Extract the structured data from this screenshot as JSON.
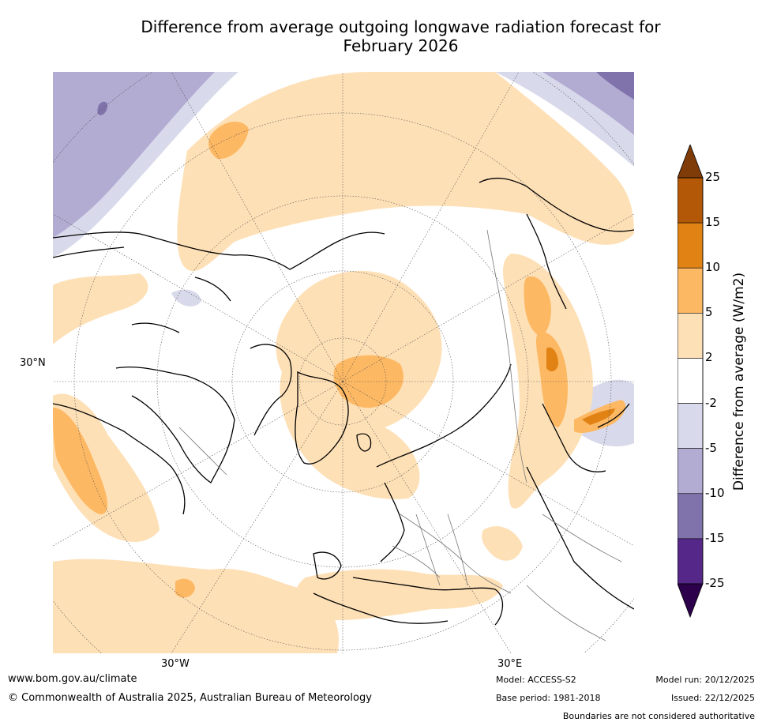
{
  "title": {
    "line1": "Difference from average outgoing longwave radiation forecast for",
    "line2": "February 2026"
  },
  "map": {
    "projection": "north polar stereographic",
    "labels": {
      "lat_30n": "30°N",
      "lon_30w": "30°W",
      "lon_30e": "30°E"
    }
  },
  "colorbar": {
    "title": "Difference from average (W/m2)",
    "ticks": [
      "25",
      "15",
      "10",
      "5",
      "2",
      "-2",
      "-5",
      "-10",
      "-15",
      "-25"
    ],
    "bands": [
      {
        "range": "15 to 25",
        "color": "#b35806"
      },
      {
        "range": "10 to 15",
        "color": "#e08214"
      },
      {
        "range": "5 to 10",
        "color": "#fdb863"
      },
      {
        "range": "2 to 5",
        "color": "#fee0b6"
      },
      {
        "range": "-2 to 2",
        "color": "#ffffff"
      },
      {
        "range": "-5 to -2",
        "color": "#d8daeb"
      },
      {
        "range": "-10 to -5",
        "color": "#b2abd2"
      },
      {
        "range": "-15 to -10",
        "color": "#8073ac"
      },
      {
        "range": "-25 to -15",
        "color": "#542788"
      }
    ],
    "top_arrow_color": "#7f3b08",
    "bottom_arrow_color": "#2d004b"
  },
  "footer": {
    "url": "www.bom.gov.au/climate",
    "copyright": "© Commonwealth of Australia 2025, Australian Bureau of Meteorology",
    "model": "Model: ACCESS-S2",
    "base_period": "Base period: 1981-2018",
    "model_run": "Model run: 20/12/2025",
    "issued": "Issued: 22/12/2025",
    "disclaimer": "Boundaries are not considered authoritative"
  }
}
